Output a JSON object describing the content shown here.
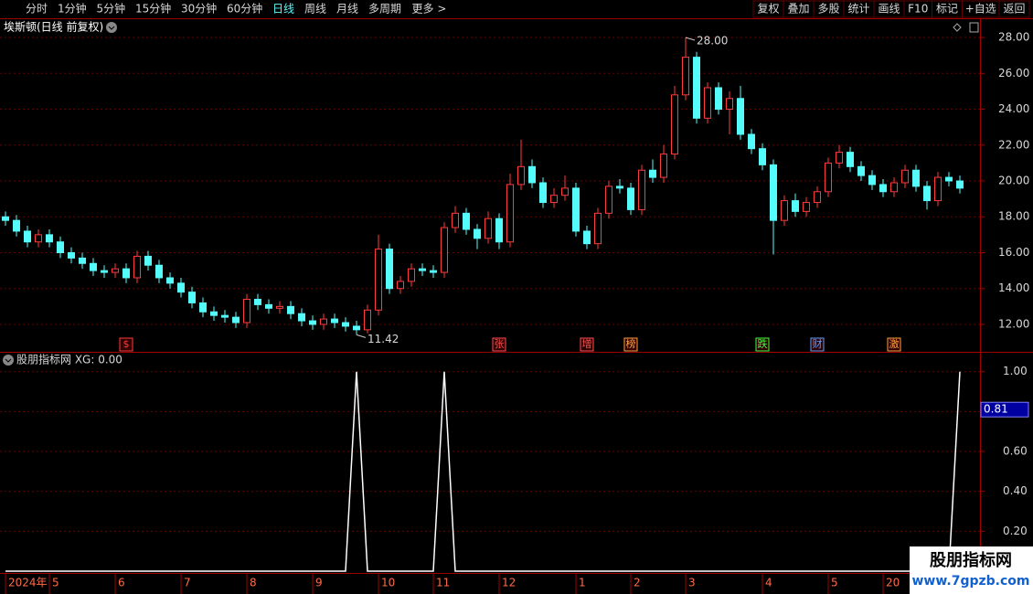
{
  "toolbar": {
    "left": [
      "分时",
      "1分钟",
      "5分钟",
      "15分钟",
      "30分钟",
      "60分钟",
      "日线",
      "周线",
      "月线",
      "多周期",
      "更多 >"
    ],
    "active_index": 6,
    "right": [
      "复权",
      "叠加",
      "多股",
      "统计",
      "画线",
      "F10",
      "标记",
      "+自选",
      "返回"
    ]
  },
  "chart_data": [
    {
      "type": "candlestick",
      "title": "埃斯顿(日线 前复权)",
      "open": [
        18.0,
        17.8,
        17.2,
        16.6,
        17.0,
        16.6,
        16.0,
        15.7,
        15.4,
        15.0,
        14.9,
        15.1,
        14.6,
        15.8,
        15.3,
        14.6,
        14.3,
        13.8,
        13.2,
        12.7,
        12.5,
        12.4,
        12.1,
        13.4,
        13.1,
        12.9,
        13.0,
        12.6,
        12.2,
        12.0,
        12.3,
        12.1,
        11.9,
        11.7,
        12.8,
        16.2,
        14.0,
        14.4,
        15.1,
        15.0,
        14.9,
        17.4,
        18.2,
        17.3,
        16.8,
        17.9,
        16.6,
        19.8,
        20.8,
        19.9,
        18.8,
        19.2,
        19.6,
        17.2,
        16.5,
        18.2,
        19.7,
        19.6,
        18.4,
        20.6,
        20.2,
        21.5,
        24.8,
        26.9,
        23.5,
        25.2,
        24.0,
        24.6,
        22.6,
        21.8,
        20.9,
        17.8,
        18.9,
        18.3,
        18.8,
        19.4,
        21.0,
        21.6,
        20.8,
        20.3,
        19.8,
        19.4,
        19.9,
        20.6,
        19.7,
        18.9,
        20.2,
        20.0
      ],
      "high": [
        18.3,
        18.1,
        17.5,
        17.3,
        17.3,
        16.9,
        16.3,
        16.0,
        15.7,
        15.3,
        15.4,
        15.4,
        16.1,
        16.1,
        15.6,
        14.9,
        14.6,
        14.1,
        13.5,
        13.0,
        12.8,
        12.7,
        13.7,
        13.7,
        13.4,
        13.3,
        13.3,
        12.9,
        12.5,
        12.6,
        12.6,
        12.4,
        12.2,
        13.1,
        17.0,
        16.5,
        14.7,
        15.4,
        15.4,
        15.3,
        17.7,
        18.6,
        18.5,
        17.6,
        18.3,
        18.2,
        20.4,
        22.3,
        21.2,
        20.2,
        19.6,
        20.3,
        19.9,
        17.5,
        18.5,
        20.0,
        20.1,
        19.9,
        20.9,
        21.2,
        22.0,
        25.3,
        28.0,
        27.2,
        25.5,
        25.5,
        25.0,
        25.3,
        22.9,
        22.1,
        21.2,
        19.2,
        19.3,
        19.1,
        19.7,
        21.3,
        22.0,
        21.9,
        21.1,
        20.6,
        20.1,
        20.2,
        20.9,
        20.9,
        20.0,
        20.5,
        20.5,
        20.3
      ],
      "low": [
        17.5,
        16.9,
        16.3,
        16.3,
        16.3,
        15.7,
        15.4,
        15.1,
        14.7,
        14.6,
        14.6,
        14.3,
        14.3,
        15.0,
        14.3,
        14.0,
        13.5,
        12.9,
        12.4,
        12.2,
        12.1,
        11.8,
        11.8,
        12.8,
        12.6,
        12.6,
        12.3,
        11.9,
        11.7,
        11.7,
        11.8,
        11.6,
        11.42,
        11.5,
        12.5,
        13.7,
        13.7,
        14.1,
        14.7,
        14.6,
        14.6,
        17.1,
        17.0,
        16.2,
        16.5,
        16.2,
        16.3,
        19.5,
        19.6,
        18.5,
        18.5,
        18.9,
        16.9,
        16.2,
        16.2,
        17.9,
        19.3,
        18.1,
        18.1,
        19.9,
        19.9,
        21.2,
        24.5,
        23.2,
        23.2,
        23.7,
        22.6,
        22.3,
        21.5,
        20.6,
        15.9,
        17.5,
        18.0,
        18.0,
        18.5,
        19.1,
        20.7,
        20.5,
        20.0,
        19.5,
        19.1,
        19.1,
        19.6,
        19.4,
        18.4,
        18.6,
        19.7,
        19.3
      ],
      "close": [
        17.8,
        17.2,
        16.6,
        17.0,
        16.6,
        16.0,
        15.7,
        15.4,
        15.0,
        14.9,
        15.1,
        14.6,
        15.8,
        15.3,
        14.6,
        14.3,
        13.8,
        13.2,
        12.7,
        12.5,
        12.4,
        12.1,
        13.4,
        13.1,
        12.9,
        13.0,
        12.6,
        12.2,
        12.0,
        12.3,
        12.1,
        11.9,
        11.7,
        12.8,
        16.2,
        14.0,
        14.4,
        15.1,
        15.0,
        14.9,
        17.4,
        18.2,
        17.3,
        16.8,
        17.9,
        16.6,
        19.8,
        20.8,
        19.9,
        18.8,
        19.2,
        19.6,
        17.2,
        16.5,
        18.2,
        19.7,
        19.6,
        18.4,
        20.6,
        20.2,
        21.5,
        24.8,
        26.9,
        23.5,
        25.2,
        24.0,
        24.6,
        22.6,
        21.8,
        20.9,
        17.8,
        18.9,
        18.3,
        18.8,
        19.4,
        21.0,
        21.6,
        20.8,
        20.3,
        19.8,
        19.4,
        19.9,
        20.6,
        19.7,
        18.9,
        20.2,
        20.0,
        19.6
      ],
      "high_label": "28.00",
      "low_label": "11.42",
      "up_color": "#ff3c3c",
      "down_color": "#54fcfc",
      "ylim": [
        10.47,
        28.97
      ],
      "yticks": [
        {
          "value": 12,
          "label": "12.00"
        },
        {
          "value": 14,
          "label": "14.00"
        },
        {
          "value": 16,
          "label": "16.00"
        },
        {
          "value": 18,
          "label": "18.00"
        },
        {
          "value": 20,
          "label": "20.00"
        },
        {
          "value": 22,
          "label": "22.00"
        },
        {
          "value": 24,
          "label": "24.00"
        },
        {
          "value": 26,
          "label": "26.00"
        },
        {
          "value": 28,
          "label": "28.00"
        }
      ],
      "grid": true,
      "events": [
        {
          "index": 11,
          "label": "$",
          "color": "#ff3c3c"
        },
        {
          "index": 45,
          "label": "张",
          "color": "#ff5050"
        },
        {
          "index": 53,
          "label": "增",
          "color": "#ff5050"
        },
        {
          "index": 57,
          "label": "榜",
          "color": "#ffa040"
        },
        {
          "index": 69,
          "label": "跌",
          "color": "#40ff40"
        },
        {
          "index": 74,
          "label": "财",
          "color": "#60a0ff"
        },
        {
          "index": 81,
          "label": "激",
          "color": "#ffa040"
        }
      ]
    },
    {
      "type": "line",
      "title": "股朋指标网 XG: 0.00",
      "color": "#ffffff",
      "values": [
        0,
        0,
        0,
        0,
        0,
        0,
        0,
        0,
        0,
        0,
        0,
        0,
        0,
        0,
        0,
        0,
        0,
        0,
        0,
        0,
        0,
        0,
        0,
        0,
        0,
        0,
        0,
        0,
        0,
        0,
        0,
        0,
        1,
        0,
        0,
        0,
        0,
        0,
        0,
        0,
        1,
        0,
        0,
        0,
        0,
        0,
        0,
        0,
        0,
        0,
        0,
        0,
        0,
        0,
        0,
        0,
        0,
        0,
        0,
        0,
        0,
        0,
        0,
        0,
        0,
        0,
        0,
        0,
        0,
        0,
        0,
        0,
        0,
        0,
        0,
        0,
        0,
        0,
        0,
        0,
        0,
        0,
        0,
        0,
        0,
        0,
        0,
        1
      ],
      "ylim": [
        0,
        1.04
      ],
      "yticks": [
        {
          "value": 0.2,
          "label": "0.20"
        },
        {
          "value": 0.4,
          "label": "0.40"
        },
        {
          "value": 0.6,
          "label": "0.60"
        },
        {
          "value": 0.8,
          "label": "0.80"
        },
        {
          "value": 1.0,
          "label": "1.00"
        }
      ],
      "cursor_label": {
        "value": 0.81,
        "label": "0.81"
      },
      "grid": true,
      "xticks": [
        {
          "value": 0,
          "label": "2024年"
        },
        {
          "value": 4,
          "label": "5"
        },
        {
          "value": 10,
          "label": "6"
        },
        {
          "value": 16,
          "label": "7"
        },
        {
          "value": 22,
          "label": "8"
        },
        {
          "value": 28,
          "label": "9"
        },
        {
          "value": 34,
          "label": "10"
        },
        {
          "value": 39,
          "label": "11"
        },
        {
          "value": 45,
          "label": "12"
        },
        {
          "value": 52,
          "label": "1"
        },
        {
          "value": 57,
          "label": "2"
        },
        {
          "value": 62,
          "label": "3"
        },
        {
          "value": 69,
          "label": "4"
        },
        {
          "value": 75,
          "label": "5"
        },
        {
          "value": 80,
          "label": "20"
        }
      ]
    }
  ],
  "watermark": {
    "name": "股朋指标网",
    "url": "www.7gpzb.com"
  }
}
